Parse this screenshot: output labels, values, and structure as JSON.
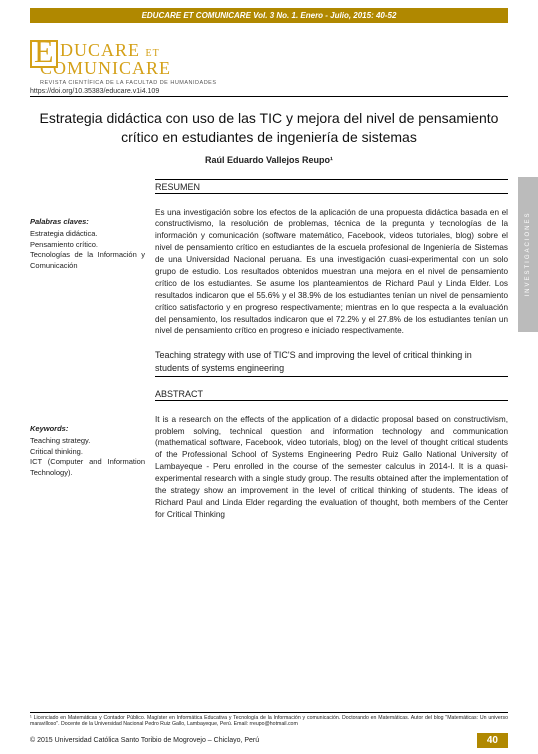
{
  "journal_header": "EDUCARE ET COMUNICARE Vol. 3 No. 1. Enero - Julio, 2015: 40-52",
  "logo": {
    "line1_a": "DUCARE",
    "line1_b": "ET",
    "line2": "COMUNICARE",
    "sub": "REVISTA CIENTÍFICA DE LA FACULTAD DE HUMANIDADES"
  },
  "doi": "https://doi.org/10.35383/educare.v1i4.109",
  "title": "Estrategia didáctica con uso de las TIC y mejora del nivel de pensamiento crítico en estudiantes de ingeniería de sistemas",
  "author": "Raúl Eduardo Vallejos Reupo¹",
  "side_tab": "INVESTIGACIONES",
  "resumen_head": "RESUMEN",
  "keywords_es_title": "Palabras claves:",
  "keywords_es": "Estrategia didáctica.\nPensamiento crítico.\nTecnologías de la Información y Comunicación",
  "resumen": "Es una investigación sobre los efectos de la aplicación de una propuesta didáctica basada en el constructivismo, la resolución de problemas, técnica de la pregunta y tecnologías de la información y comunicación (software matemático, Facebook, videos tutoriales, blog) sobre el nivel de pensamiento crítico en estudiantes de la escuela profesional de Ingeniería de Sistemas de una Universidad Nacional peruana. Es una investigación cuasi-experimental con un solo grupo de estudio. Los resultados obtenidos muestran una mejora en el nivel de pensamiento crítico de los estudiantes. Se asume los planteamientos de Richard Paul y Linda Elder. Los resultados indicaron que el 55.6% y el 38.9% de los estudiantes tenían un nivel de pensamiento crítico satisfactorio y en progreso respectivamente; mientras en lo que respecta a la evaluación del pensamiento, los resultados indicaron que el 72.2% y el 27.8% de los estudiantes tenían un nivel de pensamiento crítico en progreso e iniciado respectivamente.",
  "en_title": "Teaching strategy with use of TIC'S and improving the level of critical thinking in students of systems engineering",
  "abstract_head": "ABSTRACT",
  "keywords_en_title": "Keywords:",
  "keywords_en": "Teaching strategy.\nCritical thinking.\nICT (Computer and Information Technology).",
  "abstract": "It is a research on the effects of the application of a didactic proposal based on constructivism, problem solving, technical question and information technology and communication (mathematical software, Facebook, video tutorials, blog) on the level of thought critical students of the Professional School of Systems Engineering Pedro Ruiz Gallo National University of Lambayeque - Peru enrolled in the course of the semester calculus in 2014-I. It is a quasi-experimental research with a single study group. The results obtained after the implementation of the strategy show an improvement in the level of critical thinking of students. The ideas of Richard Paul and Linda Elder regarding the evaluation of thought, both members of the Center for Critical Thinking",
  "footnote": "¹ Licenciado en Matemáticas y Contador Público. Magíster en Informática Educativa y Tecnología de la Información y comunicación. Doctorando en Matemáticas. Autor del blog \"Matemáticas: Un universo maravilloso\". Docente de la Universidad Nacional Pedro Ruiz Gallo, Lambayeque, Perú. Email: rreupo@hotmail.com",
  "copyright": "© 2015 Universidad Católica Santo Toribio de Mogrovejo – Chiclayo, Perú",
  "page": "40",
  "colors": {
    "brand": "#b08800",
    "logo": "#d4a017",
    "side": "#bbbbbb"
  }
}
